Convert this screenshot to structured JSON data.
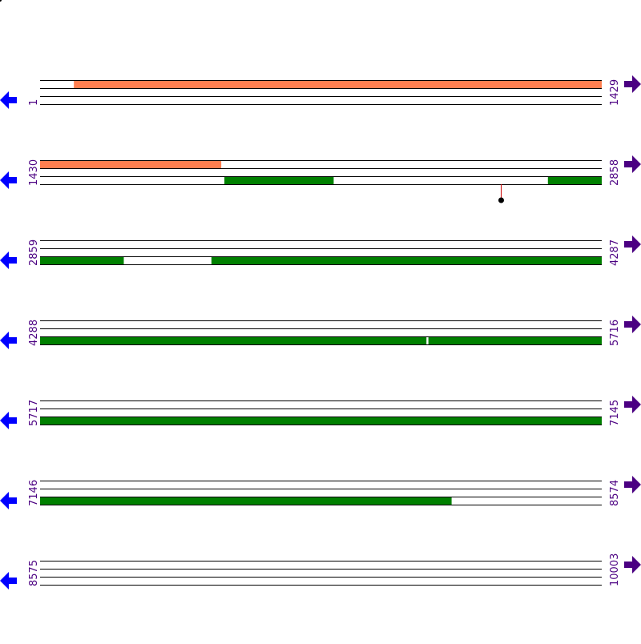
{
  "colors": {
    "track_line": "#000000",
    "feature_orange": "#ff7f50",
    "feature_green": "#008000",
    "label": "#4b0082",
    "arrow_left": "#0000ff",
    "arrow_right": "#4b0082",
    "marker_line": "#cc0000",
    "marker_dot": "#000000"
  },
  "icons": {
    "left": "arrow-left-icon",
    "right": "arrow-right-icon"
  },
  "rows": [
    {
      "start": "1",
      "end": "1429",
      "s": 1,
      "e": 1429,
      "features": [
        {
          "track": 0,
          "from": 87,
          "to": 1429,
          "color": "orange"
        }
      ],
      "markers": []
    },
    {
      "start": "1430",
      "end": "2858",
      "s": 1430,
      "e": 2858,
      "features": [
        {
          "track": 0,
          "from": 1430,
          "to": 1890,
          "color": "orange"
        },
        {
          "track": 2,
          "from": 1899,
          "to": 2176,
          "color": "green"
        },
        {
          "track": 2,
          "from": 2722,
          "to": 2858,
          "color": "green"
        }
      ],
      "markers": [
        {
          "pos": 2602
        }
      ]
    },
    {
      "start": "2859",
      "end": "4287",
      "s": 2859,
      "e": 4287,
      "features": [
        {
          "track": 2,
          "from": 2859,
          "to": 3071,
          "color": "green"
        },
        {
          "track": 2,
          "from": 3295,
          "to": 4287,
          "color": "green"
        }
      ],
      "markers": []
    },
    {
      "start": "4288",
      "end": "5716",
      "s": 4288,
      "e": 5716,
      "features": [
        {
          "track": 2,
          "from": 4288,
          "to": 5270,
          "color": "green"
        },
        {
          "track": 2,
          "from": 5276,
          "to": 5716,
          "color": "green"
        }
      ],
      "markers": []
    },
    {
      "start": "5717",
      "end": "7145",
      "s": 5717,
      "e": 7145,
      "features": [
        {
          "track": 2,
          "from": 5717,
          "to": 7145,
          "color": "green"
        }
      ],
      "markers": []
    },
    {
      "start": "7146",
      "end": "8574",
      "s": 7146,
      "e": 8574,
      "features": [
        {
          "track": 2,
          "from": 7146,
          "to": 8192,
          "color": "green"
        }
      ],
      "markers": []
    },
    {
      "start": "8575",
      "end": "10003",
      "s": 8575,
      "e": 10003,
      "features": [],
      "markers": []
    }
  ]
}
